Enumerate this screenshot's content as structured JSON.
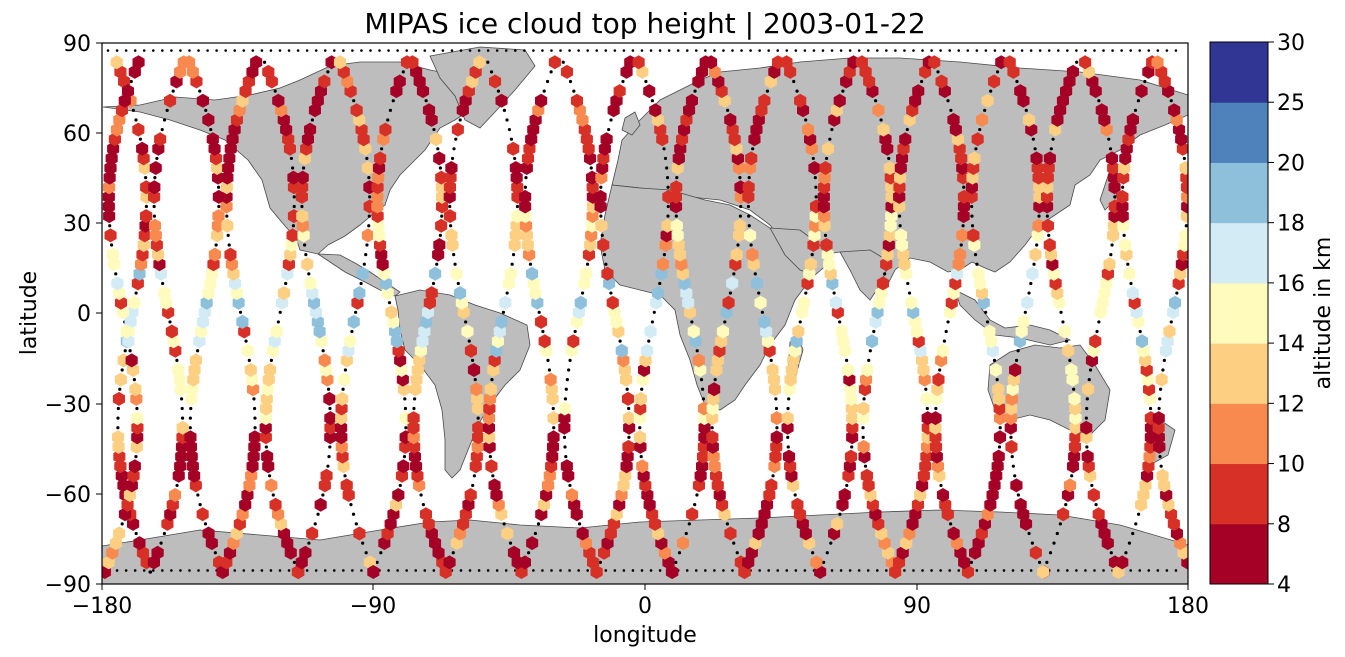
{
  "chart_data": {
    "type": "scatter",
    "title": "MIPAS ice cloud top height | 2003-01-22",
    "xlabel": "longitude",
    "ylabel": "latitude",
    "xlim": [
      -180,
      180
    ],
    "ylim": [
      -90,
      90
    ],
    "xticks": [
      "−180",
      "−90",
      "0",
      "90",
      "180"
    ],
    "yticks": [
      "90",
      "60",
      "30",
      "0",
      "−30",
      "−60",
      "−90"
    ],
    "background_map": "world land masses (grey) with coastlines",
    "marker": "hexagon",
    "colorbar": {
      "label": "altitude in km",
      "ticks": [
        "4",
        "8",
        "10",
        "12",
        "14",
        "16",
        "18",
        "20",
        "25",
        "30"
      ],
      "bounds": [
        4,
        8,
        10,
        12,
        14,
        16,
        18,
        20,
        25,
        30
      ],
      "colors": [
        "#a50026",
        "#d73027",
        "#f46d43",
        "#fdae61",
        "#fee090",
        "#ffffbf",
        "#e0f3f8",
        "#abd9e9",
        "#74add1",
        "#313695"
      ],
      "colors_actual": [
        "#a50026",
        "#d73027",
        "#f88a4f",
        "#fdcf82",
        "#fffbbc",
        "#d3ebf4",
        "#8ec0dc",
        "#4f82bb",
        "#313695"
      ]
    },
    "orbits": [
      {
        "lon0": -170,
        "dir": 1
      },
      {
        "lon0": -146,
        "dir": 1
      },
      {
        "lon0": -121,
        "dir": 1
      },
      {
        "lon0": -96,
        "dir": 1
      },
      {
        "lon0": -72,
        "dir": 1
      },
      {
        "lon0": -47,
        "dir": 1
      },
      {
        "lon0": -22,
        "dir": 1
      },
      {
        "lon0": 3,
        "dir": 1
      },
      {
        "lon0": 27,
        "dir": 1
      },
      {
        "lon0": 52,
        "dir": 1
      },
      {
        "lon0": 77,
        "dir": 1
      },
      {
        "lon0": 101,
        "dir": 1
      },
      {
        "lon0": 126,
        "dir": 1
      },
      {
        "lon0": 151,
        "dir": 1
      },
      {
        "lon0": 175,
        "dir": 1
      }
    ]
  }
}
